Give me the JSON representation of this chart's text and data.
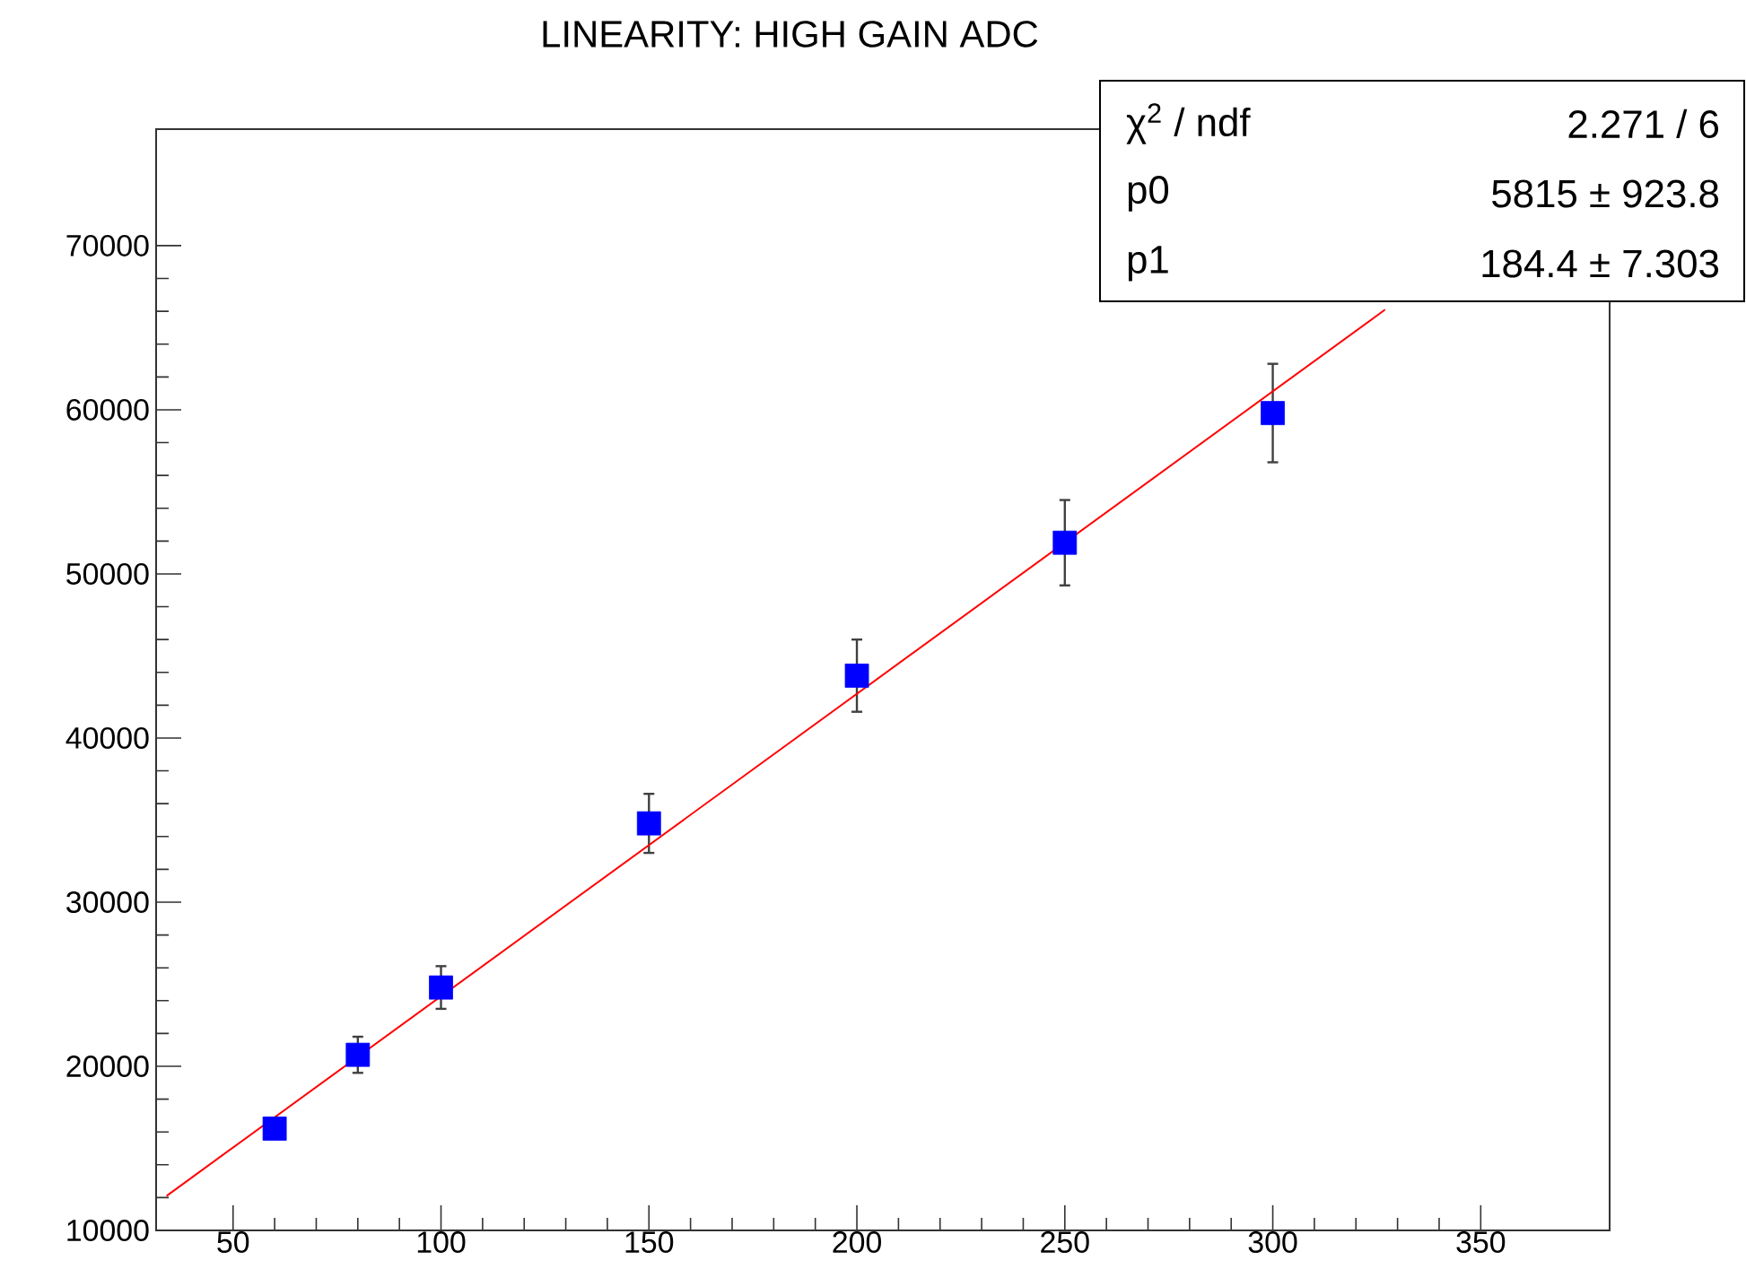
{
  "chart_data": {
    "type": "scatter",
    "title": "LINEARITY: HIGH GAIN ADC",
    "xlim": [
      31.5,
      381
    ],
    "ylim": [
      10000,
      77100
    ],
    "xticks": [
      50,
      100,
      150,
      200,
      250,
      300,
      350
    ],
    "yticks": [
      10000,
      20000,
      30000,
      40000,
      50000,
      60000,
      70000
    ],
    "grid": false,
    "series": [
      {
        "color": "#0000ff",
        "marker": "square",
        "x": [
          60,
          80,
          100,
          150,
          200,
          250,
          300
        ],
        "values": [
          16200,
          20700,
          24800,
          34800,
          43800,
          51900,
          59800
        ],
        "errors": [
          null,
          1100,
          1300,
          1800,
          2200,
          2600,
          3000
        ]
      },
      {
        "type": "line",
        "color": "#ff0000",
        "marker": "none",
        "x": [
          34,
          327
        ],
        "values": [
          12100,
          66100
        ]
      }
    ],
    "annotations": [
      "χ$^{2}$ / ndf",
      "2.271 / 6",
      "p0",
      "5815 ± 923.8",
      "p1",
      "184.4 ± 7.303"
    ]
  }
}
